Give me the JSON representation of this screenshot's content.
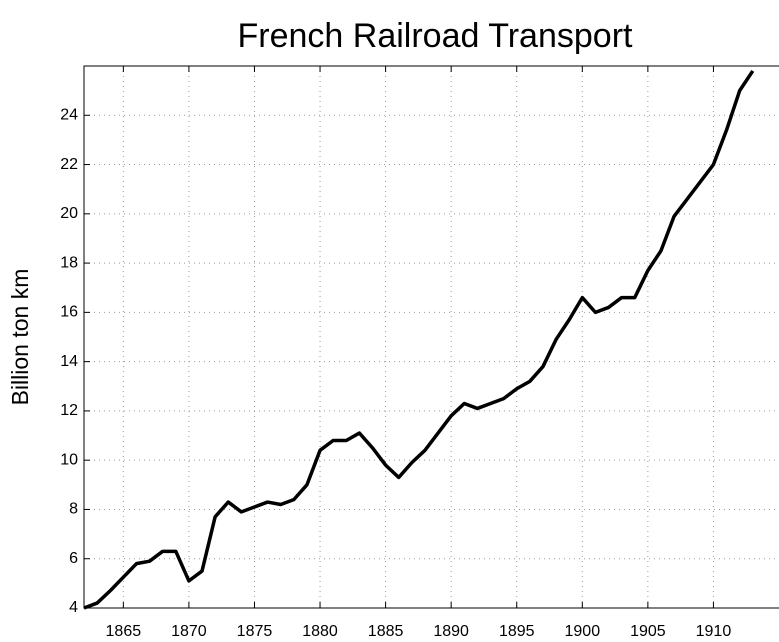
{
  "chart_data": {
    "type": "line",
    "title": "French Railroad Transport",
    "y_label": "Billion ton km",
    "x": [
      1862,
      1863,
      1864,
      1865,
      1866,
      1867,
      1868,
      1869,
      1870,
      1871,
      1872,
      1873,
      1874,
      1875,
      1876,
      1877,
      1878,
      1879,
      1880,
      1881,
      1882,
      1883,
      1884,
      1885,
      1886,
      1887,
      1888,
      1889,
      1890,
      1891,
      1892,
      1893,
      1894,
      1895,
      1896,
      1897,
      1898,
      1899,
      1900,
      1901,
      1902,
      1903,
      1904,
      1905,
      1906,
      1907,
      1908,
      1909,
      1910,
      1911,
      1912,
      1913
    ],
    "series": [
      {
        "name": "Billion ton km",
        "color": "#000000",
        "values": [
          4.0,
          4.2,
          4.7,
          5.25,
          5.8,
          5.9,
          6.3,
          6.3,
          5.1,
          5.5,
          7.7,
          8.3,
          7.9,
          8.1,
          8.3,
          8.2,
          8.4,
          9.0,
          10.4,
          10.8,
          10.8,
          11.1,
          10.5,
          9.8,
          9.3,
          9.9,
          10.4,
          11.1,
          11.8,
          12.3,
          12.1,
          12.3,
          12.5,
          12.9,
          13.2,
          13.8,
          14.9,
          15.7,
          16.6,
          16.0,
          16.2,
          16.6,
          16.6,
          17.7,
          18.5,
          19.9,
          20.6,
          21.3,
          22.0,
          23.4,
          25.0,
          25.8
        ]
      }
    ],
    "xlim": [
      1862,
      1915
    ],
    "xticks": [
      1865,
      1870,
      1875,
      1880,
      1885,
      1890,
      1895,
      1900,
      1905,
      1910
    ],
    "ylim": [
      4,
      26
    ],
    "yticks": [
      4,
      6,
      8,
      10,
      12,
      14,
      16,
      18,
      20,
      22,
      24
    ],
    "grid": true
  }
}
